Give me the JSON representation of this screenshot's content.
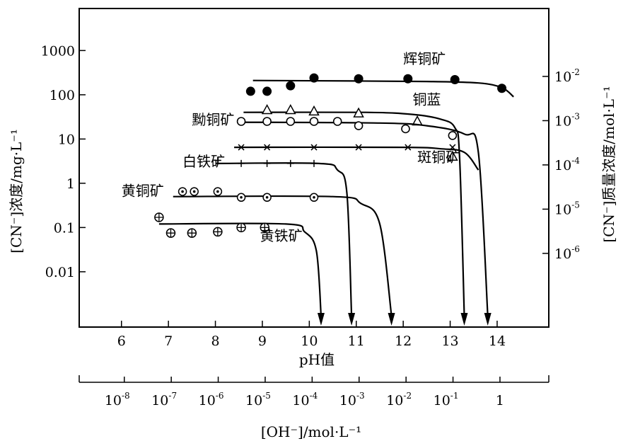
{
  "chart_data": {
    "type": "scatter",
    "xlabel": "pH值",
    "ylabel_left": "[CN⁻]浓度/mg·L⁻¹",
    "ylabel_right": "[CN⁻]质量浓度/mol·L⁻¹",
    "x2label": "[OH⁻]/mol·L⁻¹",
    "xlim": [
      5.1,
      15.1
    ],
    "x_ticks": [
      6,
      7,
      8,
      9,
      10,
      11,
      12,
      13,
      14
    ],
    "ylim_log": [
      -3.25,
      3.95
    ],
    "y_ticks": [
      {
        "v": 1000,
        "label": "1000"
      },
      {
        "v": 100,
        "label": "100"
      },
      {
        "v": 10,
        "label": "10"
      },
      {
        "v": 1,
        "label": "1"
      },
      {
        "v": 0.1,
        "label": "0.1"
      },
      {
        "v": 0.01,
        "label": "0.01"
      }
    ],
    "y2_ticks": [
      {
        "v": 260,
        "exp": "-2"
      },
      {
        "v": 26,
        "exp": "-3"
      },
      {
        "v": 2.6,
        "exp": "-4"
      },
      {
        "v": 0.26,
        "exp": "-5"
      },
      {
        "v": 0.026,
        "exp": "-6"
      }
    ],
    "x2_ticks": [
      {
        "ph": 6,
        "exp": "-8"
      },
      {
        "ph": 7,
        "exp": "-7"
      },
      {
        "ph": 8,
        "exp": "-6"
      },
      {
        "ph": 9,
        "exp": "-5"
      },
      {
        "ph": 10,
        "exp": "-4"
      },
      {
        "ph": 11,
        "exp": "-3"
      },
      {
        "ph": 12,
        "exp": "-2"
      },
      {
        "ph": 13,
        "exp": "-1"
      },
      {
        "ph": 14,
        "exp": ""
      }
    ],
    "series": [
      {
        "name": "辉铜矿",
        "marker": "filled-circle",
        "points": [
          [
            8.75,
            120
          ],
          [
            9.1,
            120
          ],
          [
            9.6,
            160
          ],
          [
            10.1,
            240
          ],
          [
            11.05,
            230
          ],
          [
            12.1,
            230
          ],
          [
            13.1,
            220
          ],
          [
            14.1,
            140
          ]
        ],
        "curve": [
          [
            8.8,
            210
          ],
          [
            11,
            205
          ],
          [
            12.5,
            200
          ],
          [
            13.6,
            185
          ],
          [
            14.1,
            145
          ],
          [
            14.35,
            90
          ]
        ],
        "label": {
          "text": "辉铜矿",
          "x": 12.0,
          "y": 500
        }
      },
      {
        "name": "铜蓝",
        "marker": "triangle",
        "points": [
          [
            9.1,
            45
          ],
          [
            9.6,
            45
          ],
          [
            10.1,
            42
          ],
          [
            11.05,
            38
          ],
          [
            12.3,
            25
          ],
          [
            13.05,
            4
          ]
        ],
        "curve": [
          [
            8.6,
            40
          ],
          [
            11.2,
            40
          ],
          [
            12.2,
            36
          ],
          [
            12.8,
            28
          ],
          [
            13.1,
            18
          ],
          [
            13.2,
            4
          ],
          [
            13.3,
            0.5
          ]
        ],
        "arrow_end_ph": 13.3,
        "label": {
          "text": "铜蓝",
          "x": 12.2,
          "y": 60
        }
      },
      {
        "name": "黝铜矿",
        "marker": "open-circle",
        "points": [
          [
            8.55,
            25
          ],
          [
            9.1,
            25
          ],
          [
            9.6,
            25
          ],
          [
            10.1,
            25
          ],
          [
            10.6,
            25
          ],
          [
            11.05,
            20
          ],
          [
            12.05,
            17
          ],
          [
            13.05,
            12
          ]
        ],
        "curve": [
          [
            8.5,
            24
          ],
          [
            11.5,
            23
          ],
          [
            12.5,
            20
          ],
          [
            13.3,
            13
          ],
          [
            13.6,
            5
          ],
          [
            13.8,
            0.5
          ]
        ],
        "arrow_end_ph": 13.8,
        "label": {
          "text": "黝铜矿",
          "x": 7.5,
          "y": 21
        }
      },
      {
        "name": "斑铜矿",
        "marker": "x",
        "points": [
          [
            8.55,
            6.5
          ],
          [
            9.1,
            6.5
          ],
          [
            10.1,
            6.5
          ],
          [
            11.05,
            6.5
          ],
          [
            12.1,
            6.5
          ],
          [
            13.05,
            6.5
          ]
        ],
        "curve": [
          [
            8.4,
            6.5
          ],
          [
            12,
            6.5
          ],
          [
            12.8,
            6
          ],
          [
            13.3,
            5
          ],
          [
            13.6,
            2
          ]
        ],
        "label": {
          "text": "斑铜矿",
          "x": 12.3,
          "y": 3.0
        }
      },
      {
        "name": "白铁矿",
        "marker": "plus",
        "points": [
          [
            8.05,
            3.3
          ],
          [
            8.55,
            2.8
          ],
          [
            9.1,
            2.8
          ],
          [
            9.6,
            2.8
          ],
          [
            10.1,
            2.8
          ]
        ],
        "curve": [
          [
            8.0,
            2.8
          ],
          [
            10.2,
            2.8
          ],
          [
            10.6,
            2.0
          ],
          [
            10.8,
            0.6
          ],
          [
            10.9,
            0.005
          ]
        ],
        "arrow_end_ph": 10.9,
        "label": {
          "text": "白铁矿",
          "x": 7.3,
          "y": 2.4
        }
      },
      {
        "name": "黄铜矿",
        "marker": "dot-circle",
        "points": [
          [
            7.3,
            0.65
          ],
          [
            7.55,
            0.65
          ],
          [
            8.05,
            0.65
          ],
          [
            8.55,
            0.48
          ],
          [
            9.1,
            0.48
          ],
          [
            10.1,
            0.48
          ]
        ],
        "curve": [
          [
            7.1,
            0.5
          ],
          [
            10.5,
            0.5
          ],
          [
            11.1,
            0.35
          ],
          [
            11.5,
            0.12
          ],
          [
            11.75,
            0.005
          ]
        ],
        "arrow_end_ph": 11.75,
        "label": {
          "text": "黄铜矿",
          "x": 6.0,
          "y": 0.52
        }
      },
      {
        "name": "黄铁矿",
        "marker": "cross-circle",
        "points": [
          [
            6.8,
            0.17
          ],
          [
            7.05,
            0.075
          ],
          [
            7.5,
            0.075
          ],
          [
            8.05,
            0.08
          ],
          [
            8.55,
            0.1
          ],
          [
            9.05,
            0.1
          ]
        ],
        "curve": [
          [
            6.8,
            0.12
          ],
          [
            9.5,
            0.12
          ],
          [
            9.9,
            0.08
          ],
          [
            10.15,
            0.03
          ],
          [
            10.25,
            0.005
          ]
        ],
        "arrow_end_ph": 10.25,
        "label": {
          "text": "黄铁矿",
          "x": 8.95,
          "y": 0.05
        }
      }
    ]
  }
}
